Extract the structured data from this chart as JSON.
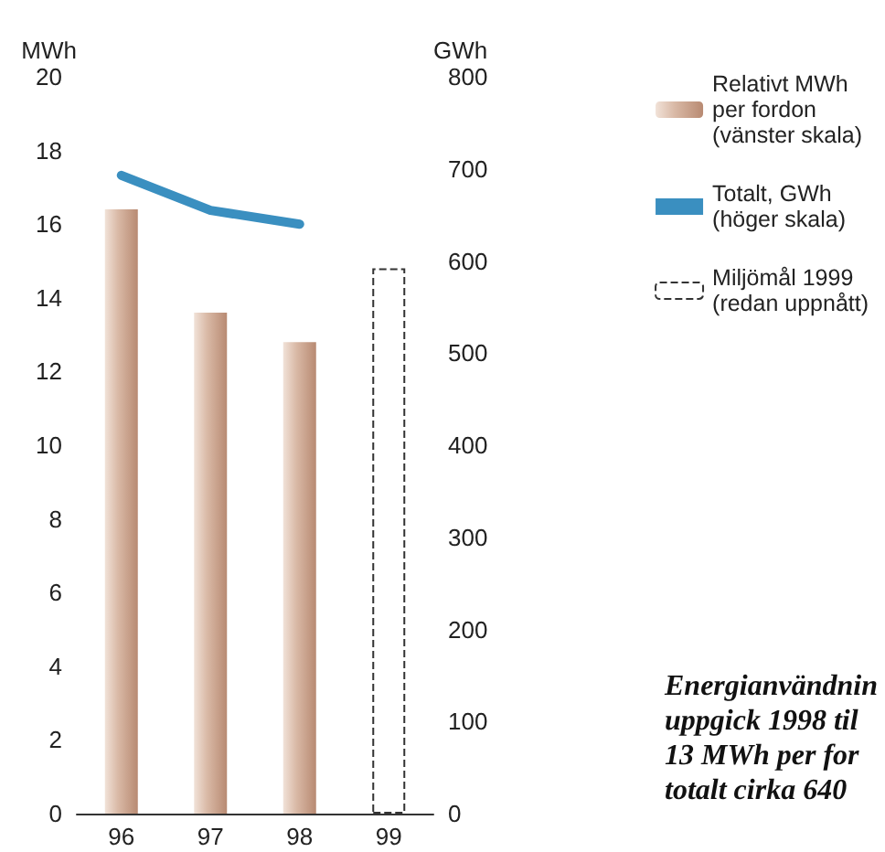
{
  "chart_data": {
    "type": "bar",
    "categories": [
      "96",
      "97",
      "98",
      "99"
    ],
    "ylabel": "MWh",
    "y2label": "GWh",
    "ylim": [
      0,
      20
    ],
    "yticks": [
      0,
      2,
      4,
      6,
      8,
      10,
      12,
      14,
      16,
      18,
      20
    ],
    "y2lim": [
      0,
      800
    ],
    "y2ticks": [
      0,
      100,
      200,
      300,
      400,
      500,
      600,
      700,
      800
    ],
    "series": [
      {
        "name": "Relativt MWh\nper fordon\n(vänster skala)",
        "color": "#b88a72",
        "values": [
          16.4,
          13.6,
          12.8,
          null
        ]
      },
      {
        "name": "Totalt, GWh\n(höger skala)",
        "type": "line",
        "axis": "y2",
        "color": "#3a8fc0",
        "values": [
          693,
          655,
          640,
          null
        ]
      },
      {
        "name": "Miljömål 1999\n(redan uppnått)",
        "line_style": "dashed",
        "color": "#333333",
        "values": [
          null,
          null,
          null,
          14.8
        ]
      }
    ],
    "legend": "top right",
    "grid": false,
    "annotations": [
      "Energianvändnin\nuppgick 1998 til\n13 MWh per for\ntotalt cirka 640"
    ]
  }
}
